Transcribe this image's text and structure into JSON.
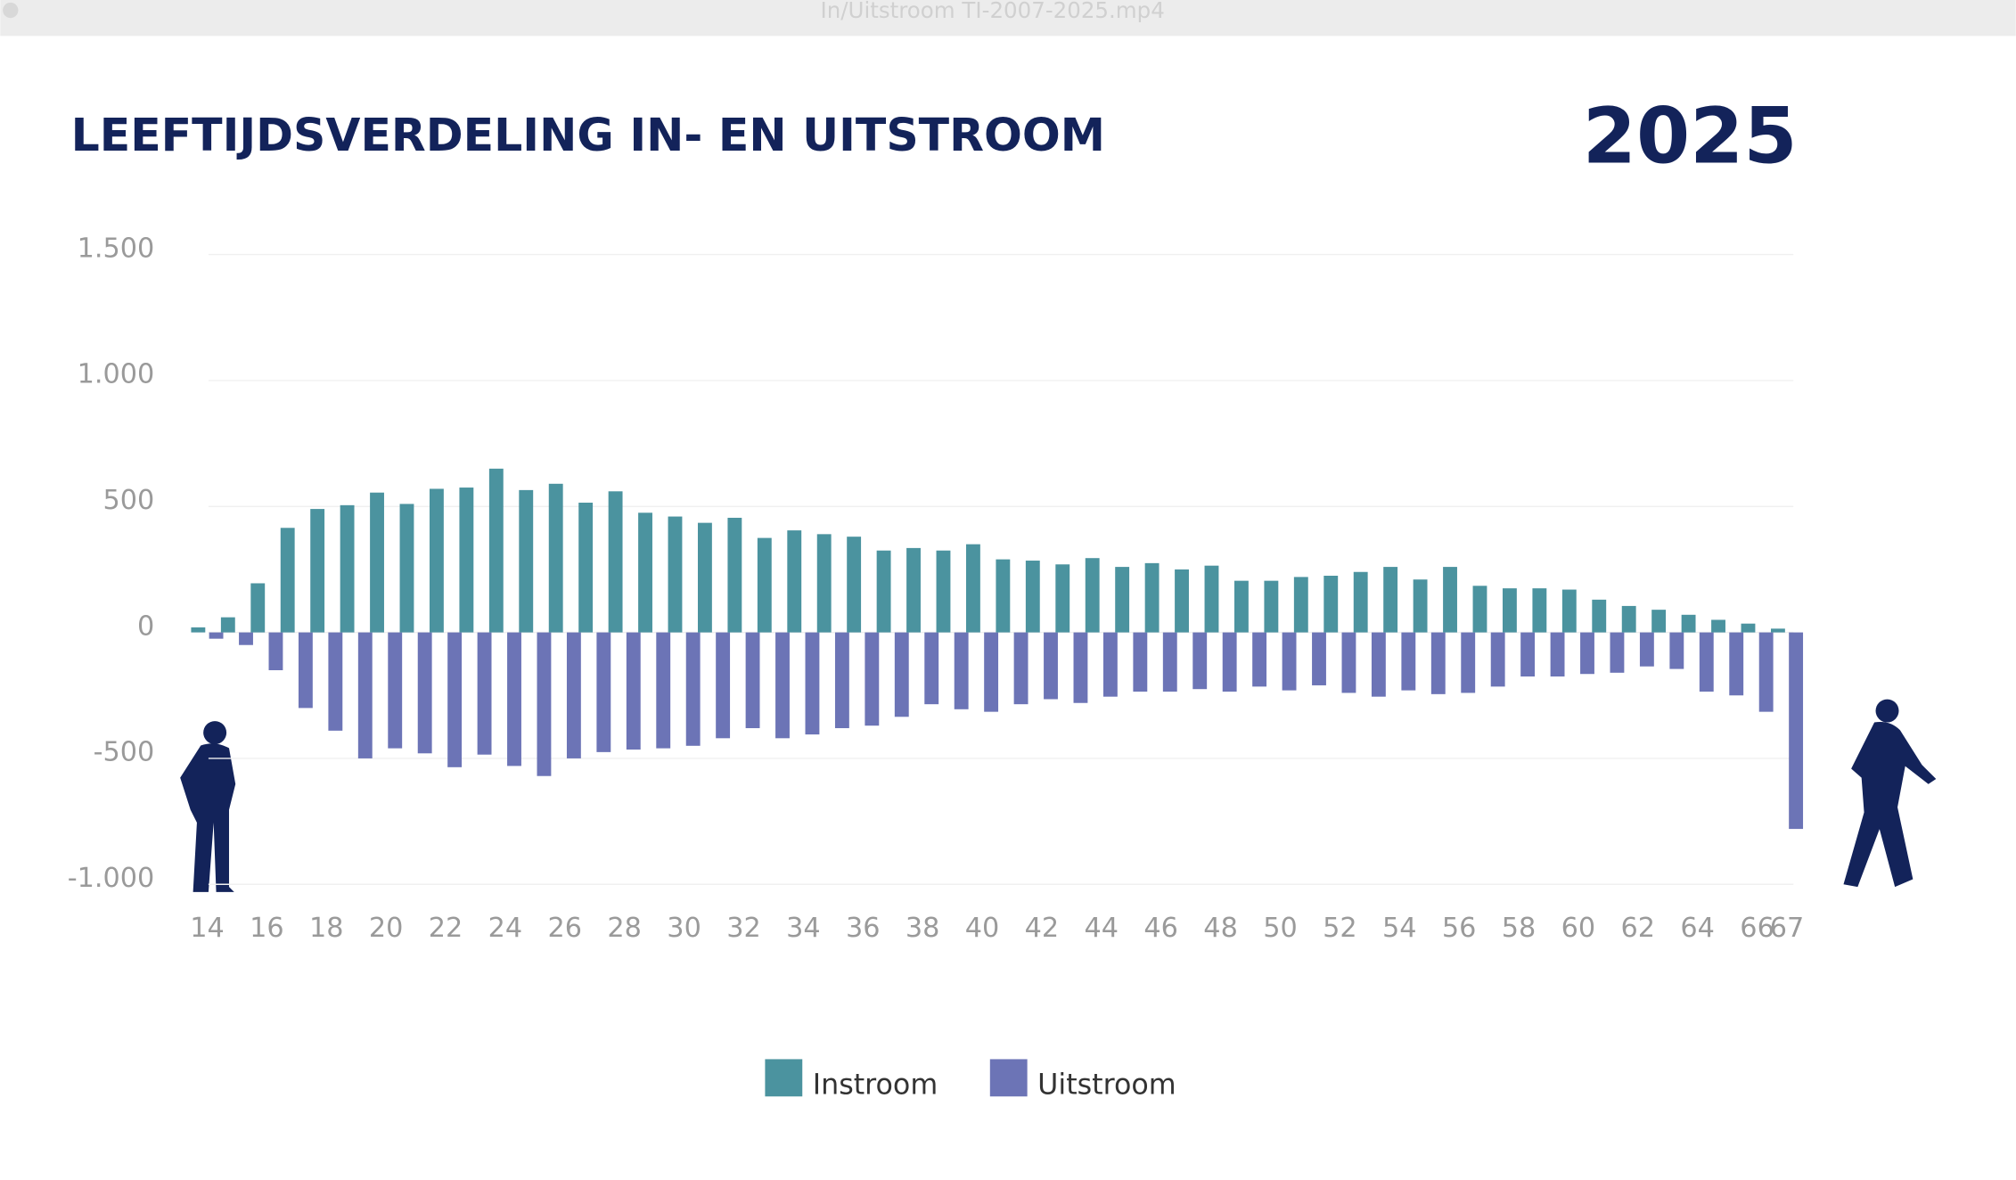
{
  "window_title": "In/Uitstroom TI-2007-2025.mp4",
  "chart_data": {
    "type": "bar",
    "title": "LEEFTIJDSVERDELING IN- EN UITSTROOM",
    "annotation": "2025",
    "categories": [
      14,
      null,
      16,
      null,
      18,
      null,
      20,
      null,
      22,
      null,
      24,
      null,
      26,
      null,
      28,
      null,
      30,
      null,
      32,
      null,
      34,
      null,
      36,
      null,
      38,
      null,
      40,
      null,
      42,
      null,
      44,
      null,
      46,
      null,
      48,
      null,
      50,
      null,
      52,
      null,
      54,
      null,
      56,
      null,
      58,
      null,
      60,
      null,
      62,
      null,
      64,
      null,
      66,
      67
    ],
    "series": [
      {
        "name": "Instroom",
        "color": "#4b939f",
        "values": [
          20,
          60,
          195,
          415,
          490,
          505,
          555,
          510,
          570,
          575,
          650,
          565,
          590,
          515,
          560,
          475,
          460,
          435,
          455,
          375,
          405,
          390,
          380,
          325,
          335,
          325,
          350,
          290,
          285,
          270,
          295,
          260,
          275,
          250,
          265,
          205,
          205,
          220,
          225,
          240,
          260,
          210,
          260,
          185,
          175,
          175,
          170,
          130,
          105,
          90,
          70,
          50,
          35,
          15
        ]
      },
      {
        "name": "Uitstroom",
        "color": "#6c74b6",
        "values": [
          -25,
          -50,
          -150,
          -300,
          -390,
          -500,
          -460,
          -480,
          -535,
          -485,
          -530,
          -570,
          -500,
          -475,
          -465,
          -460,
          -450,
          -420,
          -380,
          -420,
          -405,
          -380,
          -370,
          -335,
          -285,
          -305,
          -315,
          -285,
          -265,
          -280,
          -255,
          -235,
          -235,
          -225,
          -235,
          -215,
          -230,
          -210,
          -240,
          -255,
          -230,
          -245,
          -240,
          -215,
          -175,
          -175,
          -165,
          -160,
          -135,
          -145,
          -235,
          -250,
          -315,
          -780
        ]
      }
    ],
    "ylim": [
      -1000,
      1500
    ],
    "yticks": [
      {
        "value": -1000,
        "label": "-1.000"
      },
      -500,
      0,
      500,
      {
        "value": 1000,
        "label": "1.000"
      },
      {
        "value": 1500,
        "label": "1.500"
      }
    ],
    "grid": true,
    "legend": "bottom"
  }
}
